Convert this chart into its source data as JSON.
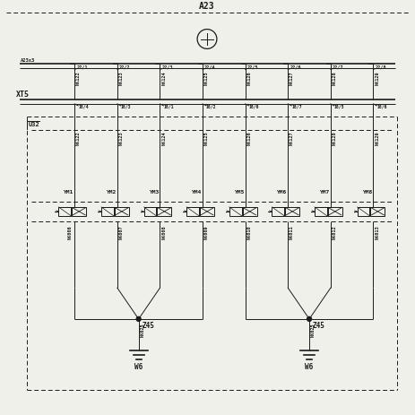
{
  "bg_color": "#f0f0eb",
  "line_color": "#1a1a1a",
  "title": "A23",
  "a23x3": "A23x3",
  "xt5": "XT5",
  "u32": "U32",
  "bus_labels_top": [
    "22/1",
    "22/2",
    "22/3",
    "22/4",
    "22/5",
    "22/6",
    "22/7",
    "22/8"
  ],
  "nk_top": [
    "NK122",
    "NK123",
    "NK124",
    "NK125",
    "NK126",
    "NK127",
    "NK128",
    "NK129"
  ],
  "xt5_labels": [
    "18/4",
    "18/3",
    "18/1",
    "18/2",
    "18/6",
    "18/7",
    "18/5",
    "18/6"
  ],
  "ym_labels": [
    "YM1",
    "YM2",
    "YM3",
    "YM4",
    "YM5",
    "YM6",
    "YM7",
    "YM8"
  ],
  "nk_mid": [
    "NK122",
    "NK123",
    "NK124",
    "NK125",
    "NK126",
    "NK127",
    "NK128",
    "NK129"
  ],
  "nk_bot": [
    "NK006",
    "NK007",
    "NK008",
    "NK009",
    "NK010",
    "NK011",
    "NK012",
    "NK013"
  ],
  "z45_label": "Z45",
  "nk025_label": "NK025",
  "w6_label": "W6",
  "figsize": [
    4.63,
    4.63
  ],
  "dpi": 100
}
